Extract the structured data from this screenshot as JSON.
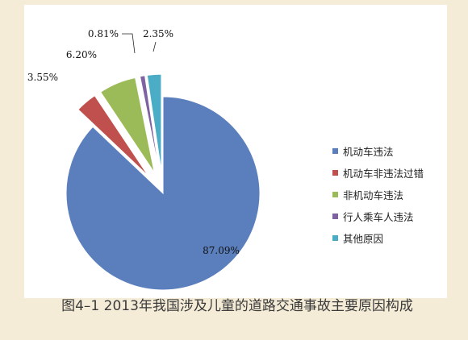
{
  "caption": "图4–1 2013年我国涉及儿童的道路交通事故主要原因构成",
  "chart_data": {
    "type": "pie",
    "title": "",
    "exploded": true,
    "legend_position": "right",
    "series": [
      {
        "name": "机动车违法",
        "value": 87.09,
        "label": "87.09%",
        "color": "#5a7fbc"
      },
      {
        "name": "机动车非违法过错",
        "value": 3.55,
        "label": "3.55%",
        "color": "#c0504d"
      },
      {
        "name": "非机动车违法",
        "value": 6.2,
        "label": "6.20%",
        "color": "#9bbb59"
      },
      {
        "name": "行人乘车人违法",
        "value": 0.81,
        "label": "0.81%",
        "color": "#7f62a1"
      },
      {
        "name": "其他原因",
        "value": 2.35,
        "label": "2.35%",
        "color": "#4bacc6"
      }
    ]
  }
}
